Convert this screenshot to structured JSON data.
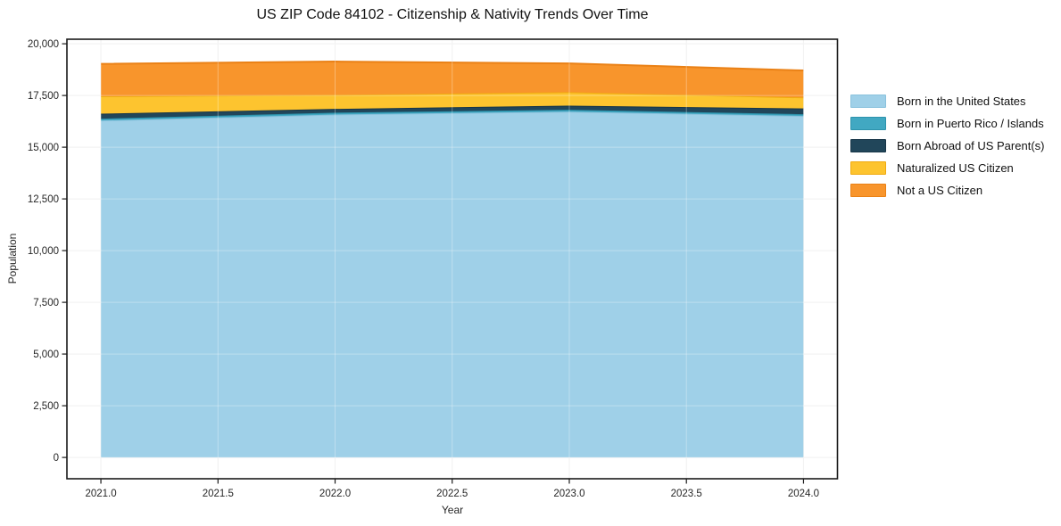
{
  "chart": {
    "title": "US ZIP Code 84102 - Citizenship & Nativity Trends Over Time",
    "xlabel": "Year",
    "ylabel": "Population"
  },
  "chart_data": {
    "type": "area",
    "stacked": true,
    "title": "US ZIP Code 84102 - Citizenship & Nativity Trends Over Time",
    "xlabel": "Year",
    "ylabel": "Population",
    "grid": true,
    "legend_position": "right-outside",
    "x": [
      2021,
      2022,
      2023,
      2024
    ],
    "x_ticks": [
      2021.0,
      2021.5,
      2022.0,
      2022.5,
      2023.0,
      2023.5,
      2024.0
    ],
    "x_tick_labels": [
      "2021.0",
      "2021.5",
      "2022.0",
      "2022.5",
      "2023.0",
      "2023.5",
      "2024.0"
    ],
    "y_ticks": [
      0,
      2500,
      5000,
      7500,
      10000,
      12500,
      15000,
      17500,
      20000
    ],
    "y_tick_labels": [
      "0",
      "2,500",
      "5,000",
      "7,500",
      "10,000",
      "12,500",
      "15,000",
      "17,500",
      "20,000"
    ],
    "xlim": [
      2020.855,
      2024.145
    ],
    "ylim": [
      -1030,
      20220
    ],
    "series": [
      {
        "name": "Born in the United States",
        "color": "#9fd0e8",
        "edge_color": "#8ac2dd",
        "values": [
          16290,
          16580,
          16720,
          16510
        ]
      },
      {
        "name": "Born in Puerto Rico / Islands",
        "color": "#41a8c2",
        "edge_color": "#2d93ad",
        "values": [
          90,
          90,
          90,
          85
        ]
      },
      {
        "name": "Born Abroad of US Parent(s)",
        "color": "#21465a",
        "edge_color": "#183648",
        "values": [
          240,
          180,
          200,
          280
        ]
      },
      {
        "name": "Naturalized US Citizen",
        "color": "#fdc42f",
        "edge_color": "#f0ab10",
        "values": [
          840,
          680,
          650,
          530
        ]
      },
      {
        "name": "Not a US Citizen",
        "color": "#f8952c",
        "edge_color": "#ea8116",
        "values": [
          1570,
          1610,
          1390,
          1305
        ]
      }
    ],
    "stack_totals": [
      19030,
      19140,
      19050,
      18710
    ],
    "colors": {
      "background": "#ffffff",
      "grid": "#ebebeb",
      "spine": "#1a1a1a",
      "tick_label": "#262626"
    }
  }
}
